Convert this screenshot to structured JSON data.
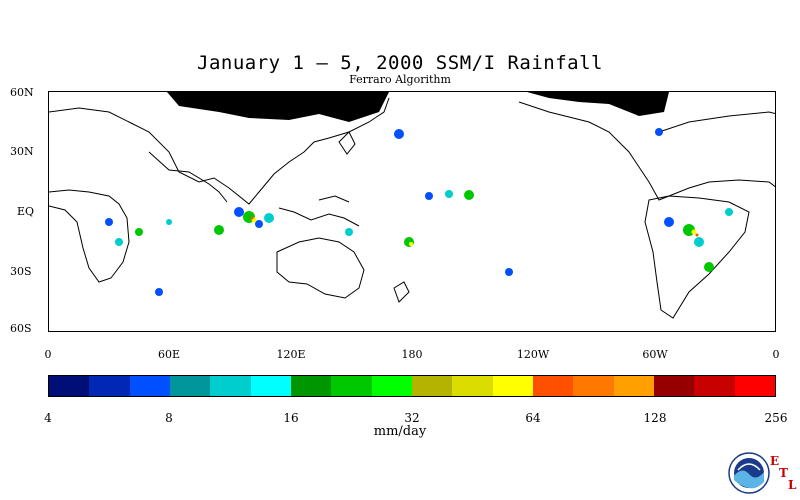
{
  "title": "January 1 – 5, 2000 SSM/I Rainfall",
  "subtitle": "Ferraro Algorithm",
  "lat_labels": [
    "60N",
    "30N",
    "EQ",
    "30S",
    "60S"
  ],
  "lon_labels": [
    "0",
    "60E",
    "120E",
    "180",
    "120W",
    "60W",
    "0"
  ],
  "colorbar": {
    "colors": [
      "#000f78",
      "#0028b4",
      "#0050ff",
      "#00969b",
      "#00cdcd",
      "#00ffff",
      "#009600",
      "#00c800",
      "#00ff00",
      "#b4b400",
      "#dcdc00",
      "#ffff00",
      "#ff5000",
      "#ff7800",
      "#ffa000",
      "#960000",
      "#c80000",
      "#ff0000"
    ],
    "tick_labels": [
      "4",
      "8",
      "16",
      "32",
      "64",
      "128",
      "256"
    ]
  },
  "units": "mm/day",
  "logo": {
    "name": "NOAA",
    "etl": [
      "E",
      "T",
      "L"
    ]
  }
}
